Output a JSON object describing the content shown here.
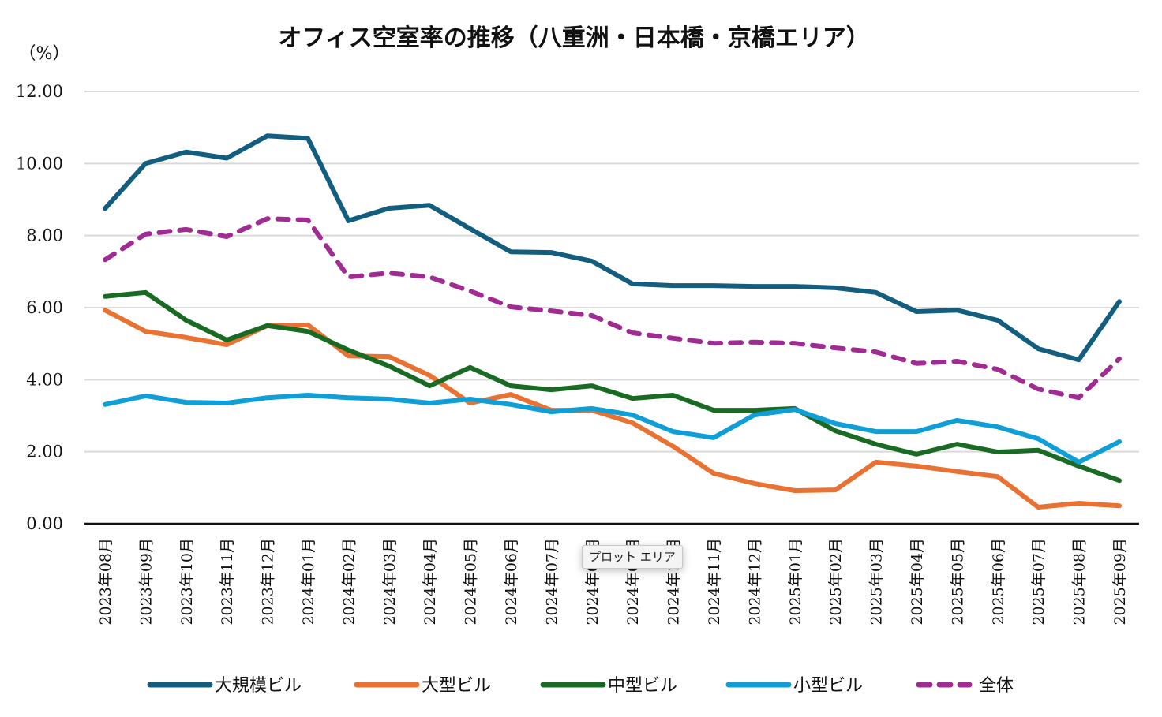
{
  "chart_data": {
    "type": "line",
    "title": "オフィス空室率の推移（八重洲・日本橋・京橋エリア）",
    "ylabel": "（%）",
    "xlabel": "",
    "ylim": [
      0,
      12
    ],
    "yticks": [
      0,
      2,
      4,
      6,
      8,
      10,
      12
    ],
    "ytick_labels": [
      "0.00",
      "2.00",
      "4.00",
      "6.00",
      "8.00",
      "10.00",
      "12.00"
    ],
    "grid": true,
    "legend_position": "bottom",
    "categories": [
      "2023年08月",
      "2023年09月",
      "2023年10月",
      "2023年11月",
      "2023年12月",
      "2024年01月",
      "2024年02月",
      "2024年03月",
      "2024年04月",
      "2024年05月",
      "2024年06月",
      "2024年07月",
      "2024年08月",
      "2024年09月",
      "2024年10月",
      "2024年11月",
      "2024年12月",
      "2025年01月",
      "2025年02月",
      "2025年03月",
      "2025年04月",
      "2025年05月",
      "2025年06月",
      "2025年07月",
      "2025年08月",
      "2025年09月"
    ],
    "series": [
      {
        "name": "大規模ビル",
        "color": "#135e7e",
        "dash": false,
        "values": [
          8.75,
          10.0,
          10.32,
          10.15,
          10.77,
          10.7,
          8.41,
          8.76,
          8.84,
          8.19,
          7.55,
          7.53,
          7.29,
          6.66,
          6.61,
          6.61,
          6.59,
          6.59,
          6.55,
          6.42,
          5.89,
          5.93,
          5.65,
          4.86,
          4.55,
          6.17
        ]
      },
      {
        "name": "大型ビル",
        "color": "#e97132",
        "dash": false,
        "values": [
          5.93,
          5.34,
          5.17,
          4.97,
          5.5,
          5.52,
          4.66,
          4.64,
          4.12,
          3.35,
          3.59,
          3.15,
          3.15,
          2.8,
          2.15,
          1.4,
          1.12,
          0.92,
          0.94,
          1.71,
          1.6,
          1.45,
          1.31,
          0.46,
          0.57,
          0.5
        ]
      },
      {
        "name": "中型ビル",
        "color": "#196b24",
        "dash": false,
        "values": [
          6.31,
          6.42,
          5.65,
          5.1,
          5.5,
          5.34,
          4.82,
          4.38,
          3.83,
          4.34,
          3.83,
          3.72,
          3.83,
          3.48,
          3.57,
          3.15,
          3.15,
          3.2,
          2.58,
          2.21,
          1.93,
          2.21,
          1.99,
          2.04,
          1.6,
          1.2
        ]
      },
      {
        "name": "小型ビル",
        "color": "#0f9ed5",
        "dash": false,
        "values": [
          3.31,
          3.55,
          3.37,
          3.35,
          3.5,
          3.57,
          3.5,
          3.46,
          3.35,
          3.46,
          3.31,
          3.11,
          3.2,
          3.02,
          2.56,
          2.39,
          3.02,
          3.17,
          2.78,
          2.56,
          2.56,
          2.87,
          2.69,
          2.36,
          1.71,
          2.28
        ]
      },
      {
        "name": "全体",
        "color": "#a02b93",
        "dash": true,
        "values": [
          7.33,
          8.04,
          8.17,
          7.97,
          8.47,
          8.43,
          6.85,
          6.96,
          6.85,
          6.46,
          6.02,
          5.91,
          5.78,
          5.3,
          5.15,
          5.01,
          5.04,
          5.01,
          4.88,
          4.77,
          4.45,
          4.51,
          4.29,
          3.74,
          3.5,
          4.58
        ]
      }
    ]
  },
  "tooltip": {
    "text": "プロット エリア"
  }
}
